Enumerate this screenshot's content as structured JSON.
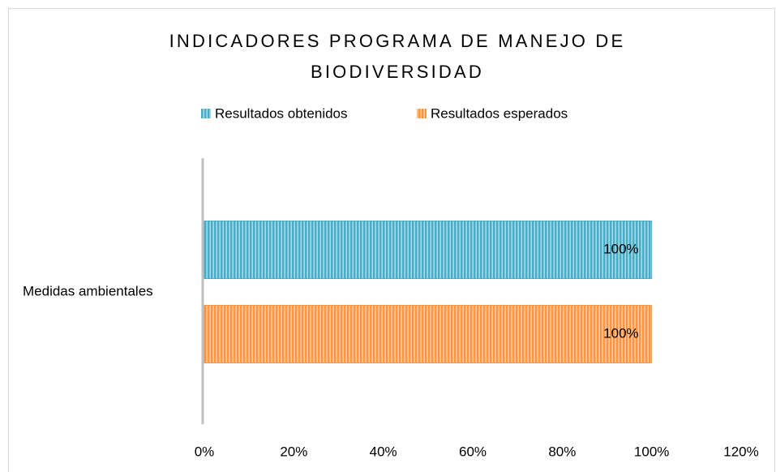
{
  "chart_data": {
    "type": "hbar",
    "title": "INDICADORES PROGRAMA DE MANEJO DE BIODIVERSIDAD",
    "categories": [
      "Medidas ambientales"
    ],
    "series": [
      {
        "name": "Resultados obtenidos",
        "color": "#4bacc6",
        "values": [
          100
        ],
        "value_labels": [
          "100%"
        ]
      },
      {
        "name": "Resultados esperados",
        "color": "#f79646",
        "values": [
          100
        ],
        "value_labels": [
          "100%"
        ]
      }
    ],
    "xlim": [
      0,
      120
    ],
    "xticks": [
      {
        "value": 0,
        "label": "0%"
      },
      {
        "value": 20,
        "label": "20%"
      },
      {
        "value": 40,
        "label": "40%"
      },
      {
        "value": 60,
        "label": "60%"
      },
      {
        "value": 80,
        "label": "80%"
      },
      {
        "value": 100,
        "label": "100%"
      },
      {
        "value": 120,
        "label": "120%"
      }
    ],
    "grid": false,
    "legend": "top"
  }
}
